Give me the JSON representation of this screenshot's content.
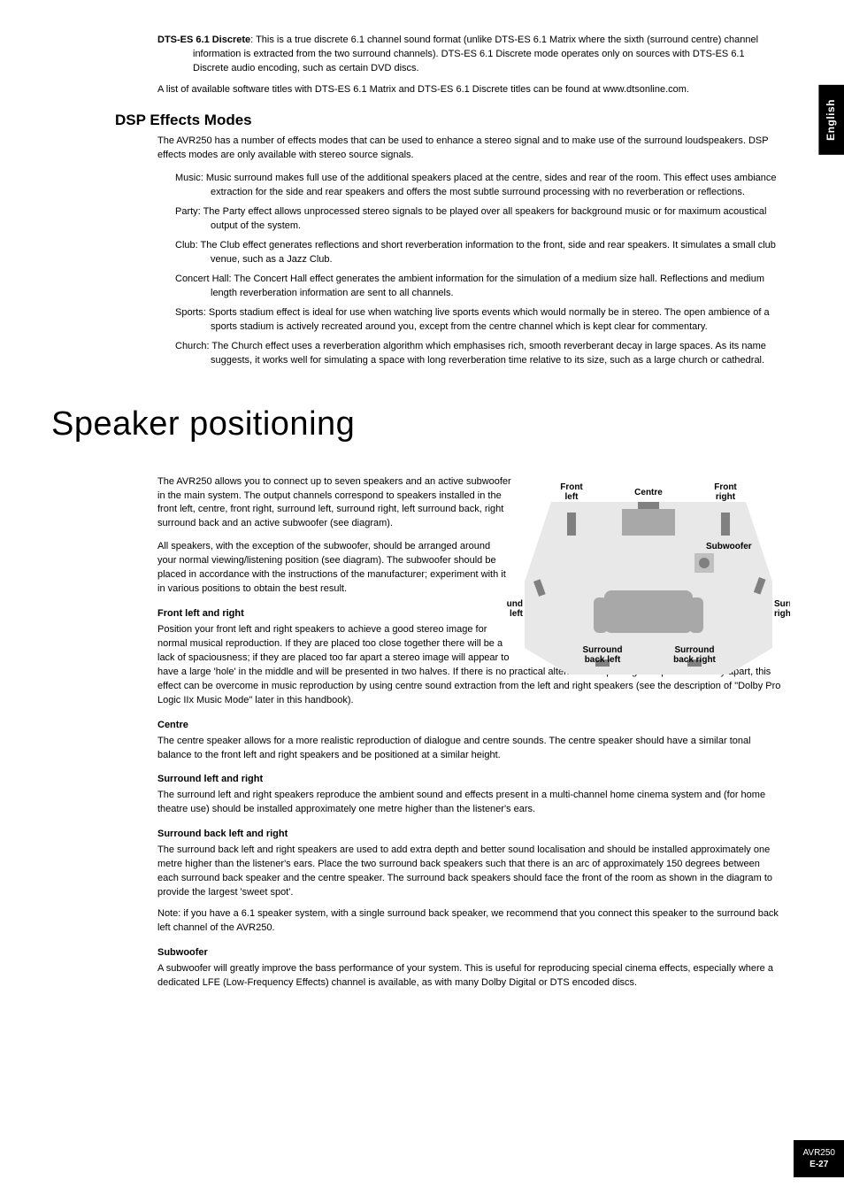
{
  "sideTab": "English",
  "footer": {
    "model": "AVR250",
    "page": "E-27"
  },
  "dtsEs": {
    "label": "DTS-ES 6.1 Discrete",
    "text": ": This is a true discrete 6.1 channel sound format (unlike DTS-ES 6.1 Matrix where the sixth (surround centre) channel information is extracted from the two surround channels). DTS-ES 6.1 Discrete mode operates only on sources with DTS-ES 6.1 Discrete audio encoding, such as certain DVD discs."
  },
  "dtsNote": "A list of available software titles with DTS-ES 6.1 Matrix and DTS-ES 6.1 Discrete titles can be found at www.dtsonline.com.",
  "dsp": {
    "heading": "DSP Effects Modes",
    "intro": "The AVR250 has a number of effects modes that can be used to enhance a stereo signal and to make use of the surround loudspeakers. DSP effects modes are only available with stereo source signals.",
    "modes": [
      {
        "label": "Music:",
        "text": " Music surround makes full use of the additional speakers placed at the centre, sides and rear of the room. This effect uses ambiance extraction for the side and rear speakers and offers the most subtle surround processing with no reverberation or reflections."
      },
      {
        "label": "Party:",
        "text": " The Party effect allows unprocessed stereo signals to be played over all speakers for background music or for maximum acoustical output of the system."
      },
      {
        "label": "Club:",
        "text": " The Club effect generates reflections and short reverberation information to the front, side and rear speakers. It simulates a small club venue, such as a Jazz Club."
      },
      {
        "label": "Concert Hall:",
        "text": " The Concert Hall effect generates the ambient information for the simulation of a medium size hall. Reflections and medium length reverberation information are sent to all channels."
      },
      {
        "label": "Sports:",
        "text": " Sports stadium effect is ideal for use when watching live sports events which would normally be in stereo. The open ambience of a sports stadium is actively recreated around you, except from the centre channel which is kept clear for commentary."
      },
      {
        "label": "Church:",
        "text": " The Church effect uses a reverberation algorithm which emphasises rich, smooth reverberant decay in large spaces. As its name suggests, it works well for simulating a space with long reverberation time relative to its size, such as a large church or cathedral."
      }
    ]
  },
  "spk": {
    "heading": "Speaker positioning",
    "intro1": "The AVR250 allows you to connect up to seven speakers and an active subwoofer in the main system. The output channels correspond to speakers installed in the front left, centre, front right, surround left, surround right, left surround back, right surround back and an active subwoofer (see diagram).",
    "intro2": "All speakers, with the exception of the subwoofer, should be arranged around your normal viewing/listening position (see diagram). The subwoofer should be placed in accordance with the instructions of the manufacturer; experiment with it in various positions to obtain the best result.",
    "flr": {
      "h": "Front left and right",
      "p1": "Position your front left and right speakers to achieve a good stereo image for normal musical reproduction. If they are placed too close together there will be a lack of spaciousness; if they are placed too far apart a stereo image will appear to",
      "p2": "have a large 'hole' in the middle and will be presented in two halves. If there is no practical alternative to placing the speakers widely apart, this effect can be overcome in music reproduction by using centre sound extraction from the left and right speakers (see the description of \"Dolby Pro Logic IIx Music Mode\" later in this handbook)."
    },
    "centre": {
      "h": "Centre",
      "p": "The centre speaker allows for a more realistic reproduction of dialogue and centre sounds. The centre speaker should have a similar tonal balance to the front left and right speakers and be positioned at a similar height."
    },
    "slr": {
      "h": "Surround left and right",
      "p": "The surround left and right speakers reproduce the ambient sound and effects present in a multi-channel home cinema system and (for home theatre use) should be installed approximately one metre higher than the listener's ears."
    },
    "sblr": {
      "h": "Surround back left and right",
      "p1": "The surround back left and right speakers are used to add extra depth and better sound localisation and should be installed approximately one metre higher than the listener's ears. Place the two surround back speakers such that there is an arc of approximately 150 degrees between each surround back speaker and the centre speaker. The surround back speakers should face the front of the room as shown in the diagram to provide the largest 'sweet spot'.",
      "p2": "Note: if you have a 6.1 speaker system, with a single surround back speaker, we recommend that you connect this speaker to the surround back left channel of the AVR250."
    },
    "sub": {
      "h": "Subwoofer",
      "p": "A subwoofer will greatly improve the bass performance of your system. This is useful for reproducing special cinema effects, especially where a dedicated LFE (Low-Frequency Effects) channel is available, as with many Dolby Digital or DTS encoded discs."
    }
  },
  "diagram": {
    "labels": {
      "fl": "Front left",
      "c": "Centre",
      "fr": "Front right",
      "sub": "Subwoofer",
      "sl": "Surround left",
      "sr": "Surround right",
      "sbl": "Surround back left",
      "sbr": "Surround back right"
    },
    "colors": {
      "roomFill": "#e8e8e8",
      "stroke": "#000000",
      "speaker": "#808080",
      "furniture": "#a8a8a8",
      "sub": "#c0c0c0"
    }
  }
}
